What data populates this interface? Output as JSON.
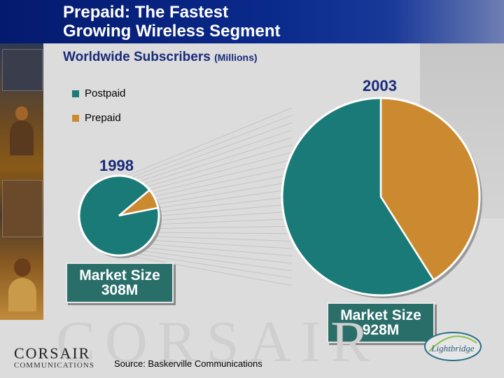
{
  "title_line1": "Prepaid: The Fastest",
  "title_line2": "Growing Wireless Segment",
  "subtitle": "Worldwide Subscribers",
  "subtitle_unit": "(Millions)",
  "legend": [
    {
      "label": "Postpaid",
      "color": "#1a7a78"
    },
    {
      "label": "Prepaid",
      "color": "#cc8a30"
    }
  ],
  "chart_data": [
    {
      "type": "pie",
      "title": "1998",
      "categories": [
        "Postpaid",
        "Prepaid"
      ],
      "values": [
        92,
        8
      ],
      "colors": [
        "#1a7a78",
        "#cc8a30"
      ],
      "total_label_line1": "Market Size",
      "total_label_line2": "308M"
    },
    {
      "type": "pie",
      "title": "2003",
      "categories": [
        "Postpaid",
        "Prepaid"
      ],
      "values": [
        59,
        41
      ],
      "colors": [
        "#1a7a78",
        "#cc8a30"
      ],
      "total_label_line1": "Market Size",
      "total_label_line2": "928M"
    }
  ],
  "watermark": "CORSAIR",
  "logo": {
    "name": "CORSAIR",
    "sub": "COMMUNICATIONS"
  },
  "source": "Source: Baskerville Communications",
  "partner_logo": "Lightbridge"
}
